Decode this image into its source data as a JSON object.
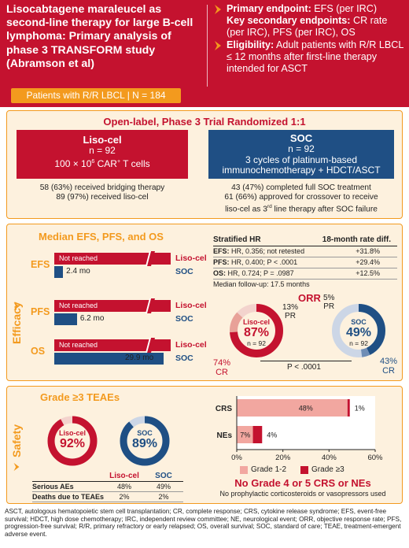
{
  "header": {
    "title": "Lisocabtagene maraleucel as second-line therapy for large B-cell lymphoma: Primary analysis of phase 3 TRANSFORM study (Abramson et al)",
    "endpoints": [
      {
        "key": "Primary endpoint:",
        "text": " EFS (per IRC)",
        "chevron": true
      },
      {
        "key": "Key secondary endpoints:",
        "text": " CR rate (per IRC), PFS (per IRC), OS",
        "chevron": false
      },
      {
        "key": "Eligibility:",
        "text": " Adult patients with R/R LBCL ≤ 12 months after first-line therapy intended for ASCT",
        "chevron": true
      }
    ],
    "population": "Patients with R/R LBCL | N = 184"
  },
  "trial": {
    "title": "Open-label, Phase 3 Trial Randomized 1:1",
    "liso": {
      "name": "Liso-cel",
      "n": "n = 92",
      "detail_pre": "100 × 10",
      "detail_sup": "6",
      "detail_post": " CAR",
      "detail_sup2": "+",
      "detail_end": " T cells",
      "notes": [
        "58 (63%) received bridging therapy",
        "89 (97%) received liso-cel"
      ]
    },
    "soc": {
      "name": "SOC",
      "n": "n = 92",
      "line1": "3 cycles of platinum-based",
      "line2": "immunochemotherapy + HDCT/ASCT",
      "note1": "43 (47%) completed full SOC treatment",
      "note2": "61 (66%) approved for crossover to receive",
      "note3_pre": "liso-cel as 3",
      "note3_sup": "rd",
      "note3_post": " line therapy after SOC failure"
    }
  },
  "efficacy": {
    "side_label": "Efficacy",
    "subtitle": "Median EFS, PFS, and OS",
    "liso_label": "Liso-cel",
    "soc_label": "SOC",
    "not_reached": "Not reached",
    "endpoints": [
      {
        "name": "EFS",
        "soc_months": 2.4,
        "soc_label": "2.4 mo"
      },
      {
        "name": "PFS",
        "soc_months": 6.2,
        "soc_label": "6.2 mo"
      },
      {
        "name": "OS",
        "soc_months": 29.9,
        "soc_label": "29.9 mo"
      }
    ],
    "hr_table": {
      "col1": "Stratified HR",
      "col2": "18-month rate diff.",
      "rows": [
        {
          "ep": "EFS:",
          "hr": " HR, 0.356; not retested",
          "diff": "+31.8%"
        },
        {
          "ep": "PFS:",
          "hr": " HR, 0.400; P < .0001",
          "diff": "+29.4%"
        },
        {
          "ep": "OS:",
          "hr": " HR, 0.724; P = .0987",
          "diff": "+12.5%"
        }
      ],
      "footer": "Median follow-up: 17.5 months"
    },
    "orr": {
      "title": "ORR",
      "liso": {
        "label": "Liso-cel",
        "value": "87%",
        "n": "n = 92",
        "cr_pct": 74,
        "pr_pct": 13,
        "cr_label": "74%",
        "cr_word": "CR",
        "pr_label": "13%",
        "pr_word": "PR"
      },
      "soc": {
        "label": "SOC",
        "value": "49%",
        "n": "n = 92",
        "cr_pct": 43,
        "pr_pct": 5,
        "cr_label": "43%",
        "cr_word": "CR",
        "pr_label": "5%",
        "pr_word": "PR"
      },
      "p_value": "P < .0001"
    }
  },
  "safety": {
    "side_label": "Safety",
    "teae_title": "Grade ≥3 TEAEs",
    "liso_donut": {
      "label": "Liso-cel",
      "value": "92%",
      "pct": 92
    },
    "soc_donut": {
      "label": "SOC",
      "value": "89%",
      "pct": 89
    },
    "table": {
      "h_liso": "Liso-cel",
      "h_soc": "SOC",
      "rows": [
        {
          "name": "Serious AEs",
          "liso": "48%",
          "soc": "49%"
        },
        {
          "name": "Deaths due to TEAEs",
          "liso": "2%",
          "soc": "2%"
        }
      ]
    },
    "no_grade": "No Grade 4 or 5 CRS or NEs",
    "no_proph": "No prophylactic corticosteroids or vasopressors used"
  },
  "chart_data": {
    "type": "bar",
    "orientation": "horizontal",
    "stacked": true,
    "categories": [
      "CRS",
      "NEs"
    ],
    "series": [
      {
        "name": "Grade 1-2",
        "values": [
          48,
          7
        ],
        "labels": [
          "48%",
          "7%"
        ],
        "color": "#f2a7a0"
      },
      {
        "name": "Grade ≥3",
        "values": [
          1,
          4
        ],
        "labels": [
          "1%",
          "4%"
        ],
        "color": "#c4122f"
      }
    ],
    "xlim": [
      0,
      60
    ],
    "xticks": [
      0,
      20,
      40,
      60
    ],
    "xtick_labels": [
      "0%",
      "20%",
      "40%",
      "60%"
    ],
    "legend_position": "bottom",
    "grid": false
  },
  "footnote": "ASCT, autologous hematopoietic stem cell transplantation; CR, complete response; CRS, cytokine release syndrome; EFS, event-free survival; HDCT, high dose chemotherapy; IRC, independent review committee; NE, neurological event; ORR, objective response rate; PFS, progression-free survival; R/R, primary refractory or early relapsed; OS, overall survival; SOC, standard of care; TEAE, treatment-emergent adverse event.",
  "colors": {
    "red": "#c4122f",
    "blue": "#1f4f84",
    "orange": "#f39a1e",
    "cream": "#fdf1de",
    "pink": "#f2a7a0"
  }
}
